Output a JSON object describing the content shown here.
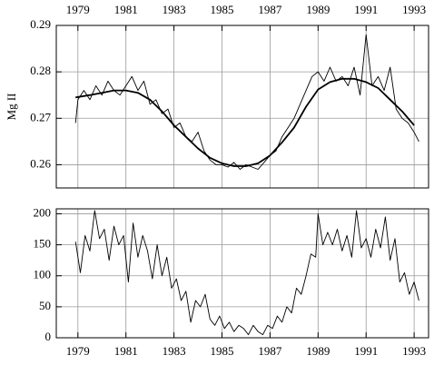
{
  "chart_data": [
    {
      "type": "line",
      "y_label": "Mg II",
      "xaxis_position": "top",
      "grid": true,
      "color": "#000000",
      "xlim": [
        1978.1,
        1993.6
      ],
      "xticks": [
        1979,
        1981,
        1983,
        1985,
        1987,
        1989,
        1991,
        1993
      ],
      "ylim": [
        0.255,
        0.29
      ],
      "yticks": [
        0.26,
        0.27,
        0.28,
        0.29
      ],
      "series": [
        {
          "color": "#000000",
          "x": [
            1978.9,
            1979.0,
            1979.25,
            1979.5,
            1979.75,
            1980.0,
            1980.25,
            1980.5,
            1980.75,
            1981.0,
            1981.25,
            1981.5,
            1981.75,
            1982.0,
            1982.25,
            1982.5,
            1982.75,
            1983.0,
            1983.25,
            1983.5,
            1983.75,
            1984.0,
            1984.25,
            1984.5,
            1984.75,
            1985.0,
            1985.25,
            1985.5,
            1985.75,
            1986.0,
            1986.25,
            1986.5,
            1986.75,
            1987.0,
            1987.25,
            1987.5,
            1987.75,
            1988.0,
            1988.25,
            1988.5,
            1988.75,
            1989.0,
            1989.25,
            1989.5,
            1989.75,
            1990.0,
            1990.25,
            1990.5,
            1990.75,
            1991.0,
            1991.25,
            1991.5,
            1991.75,
            1992.0,
            1992.25,
            1992.5,
            1992.75,
            1993.0,
            1993.2
          ],
          "values": [
            0.269,
            0.274,
            0.276,
            0.274,
            0.277,
            0.275,
            0.278,
            0.276,
            0.275,
            0.277,
            0.279,
            0.276,
            0.278,
            0.273,
            0.274,
            0.271,
            0.272,
            0.268,
            0.269,
            0.266,
            0.265,
            0.267,
            0.263,
            0.261,
            0.26,
            0.26,
            0.2595,
            0.2605,
            0.259,
            0.26,
            0.2595,
            0.259,
            0.2605,
            0.262,
            0.263,
            0.266,
            0.268,
            0.27,
            0.273,
            0.276,
            0.279,
            0.28,
            0.278,
            0.281,
            0.278,
            0.279,
            0.277,
            0.281,
            0.275,
            0.288,
            0.277,
            0.279,
            0.276,
            0.281,
            0.272,
            0.27,
            0.269,
            0.267,
            0.265
          ]
        },
        {
          "color": "#000000",
          "x": [
            1978.9,
            1979.5,
            1980.0,
            1980.5,
            1981.0,
            1981.5,
            1982.0,
            1982.5,
            1983.0,
            1983.5,
            1984.0,
            1984.5,
            1985.0,
            1985.5,
            1986.0,
            1986.5,
            1987.0,
            1987.5,
            1988.0,
            1988.5,
            1989.0,
            1989.5,
            1990.0,
            1990.5,
            1991.0,
            1991.5,
            1992.0,
            1992.5,
            1993.0
          ],
          "values": [
            0.2745,
            0.275,
            0.2755,
            0.276,
            0.276,
            0.2755,
            0.274,
            0.2715,
            0.2685,
            0.266,
            0.2635,
            0.2615,
            0.2603,
            0.2597,
            0.2597,
            0.2603,
            0.262,
            0.2648,
            0.268,
            0.2725,
            0.2762,
            0.2778,
            0.2785,
            0.2785,
            0.2778,
            0.2765,
            0.274,
            0.2715,
            0.2685
          ]
        }
      ]
    },
    {
      "type": "line",
      "xaxis_position": "bottom",
      "grid": true,
      "xlim": [
        1978.1,
        1993.6
      ],
      "xticks": [
        1979,
        1981,
        1983,
        1985,
        1987,
        1989,
        1991,
        1993
      ],
      "ylim": [
        0,
        208
      ],
      "yticks": [
        0,
        50,
        100,
        150,
        200
      ],
      "series": [
        {
          "color": "#000000",
          "x": [
            1978.9,
            1979.1,
            1979.3,
            1979.5,
            1979.7,
            1979.9,
            1980.1,
            1980.3,
            1980.5,
            1980.7,
            1980.9,
            1981.1,
            1981.3,
            1981.5,
            1981.7,
            1981.9,
            1982.1,
            1982.3,
            1982.5,
            1982.7,
            1982.9,
            1983.1,
            1983.3,
            1983.5,
            1983.7,
            1983.9,
            1984.1,
            1984.3,
            1984.5,
            1984.7,
            1984.9,
            1985.1,
            1985.3,
            1985.5,
            1985.7,
            1985.9,
            1986.1,
            1986.3,
            1986.5,
            1986.7,
            1986.9,
            1987.1,
            1987.3,
            1987.5,
            1987.7,
            1987.9,
            1988.1,
            1988.3,
            1988.5,
            1988.7,
            1988.9,
            1989.0,
            1989.2,
            1989.4,
            1989.6,
            1989.8,
            1990.0,
            1990.2,
            1990.4,
            1990.6,
            1990.8,
            1991.0,
            1991.2,
            1991.4,
            1991.6,
            1991.8,
            1992.0,
            1992.2,
            1992.4,
            1992.6,
            1992.8,
            1993.0,
            1993.2
          ],
          "values": [
            155,
            105,
            165,
            140,
            205,
            160,
            175,
            125,
            180,
            150,
            165,
            90,
            185,
            130,
            165,
            140,
            95,
            150,
            100,
            130,
            80,
            95,
            60,
            75,
            25,
            60,
            50,
            70,
            30,
            20,
            35,
            15,
            25,
            10,
            20,
            15,
            5,
            20,
            10,
            5,
            20,
            15,
            35,
            25,
            50,
            40,
            80,
            70,
            100,
            135,
            130,
            200,
            150,
            170,
            150,
            175,
            140,
            165,
            130,
            205,
            145,
            160,
            130,
            175,
            145,
            195,
            125,
            160,
            90,
            105,
            70,
            90,
            60
          ]
        }
      ]
    }
  ]
}
